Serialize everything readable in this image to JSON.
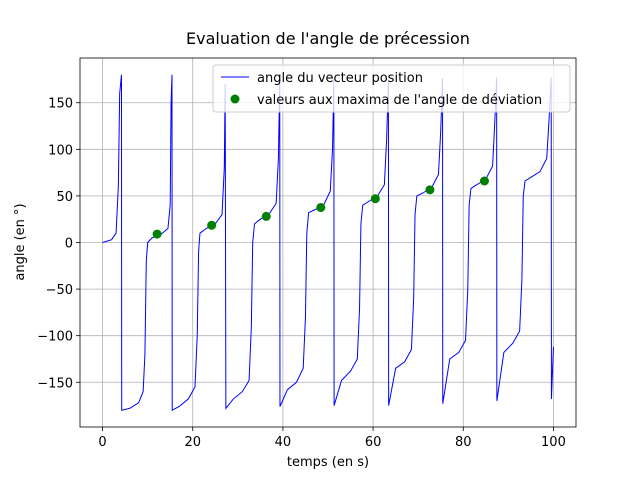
{
  "chart_data": {
    "type": "line",
    "title": "Evaluation de l'angle de précession",
    "xlabel": "temps (en s)",
    "ylabel": "angle (en °)",
    "xlim": [
      -5,
      105
    ],
    "ylim": [
      -198,
      198
    ],
    "xticks": [
      0,
      20,
      40,
      60,
      80,
      100
    ],
    "yticks": [
      {
        "value": -150,
        "label": "−150"
      },
      {
        "value": -100,
        "label": "−100"
      },
      {
        "value": -50,
        "label": "−50"
      },
      0,
      50,
      100,
      150
    ],
    "grid": true,
    "legend": "upper right",
    "series": [
      {
        "name": "angle du vecteur position",
        "type": "line",
        "color": "#0000ff",
        "x": [
          0,
          2,
          3,
          3.5,
          3.8,
          4.2,
          4.25,
          6,
          8,
          9,
          9.4,
          9.7,
          10,
          11,
          13,
          14.5,
          15,
          15.2,
          15.4,
          15.45,
          17,
          19,
          20.5,
          21,
          21.3,
          21.6,
          23,
          25,
          26.5,
          27,
          27.2,
          27.35,
          29,
          31,
          32.5,
          33,
          33.3,
          33.7,
          35,
          37,
          38.5,
          39,
          39.3,
          39.35,
          41,
          43,
          44.5,
          45,
          45.3,
          45.7,
          47,
          49,
          50.5,
          51,
          51.3,
          51.35,
          53,
          55,
          56.5,
          57,
          57.3,
          57.7,
          59,
          61,
          62.5,
          63,
          63.4,
          63.45,
          65,
          67,
          68.5,
          69,
          69.3,
          69.7,
          71,
          73,
          74.5,
          75,
          75.4,
          75.45,
          77,
          79,
          80.5,
          81,
          81.3,
          81.7,
          83,
          85,
          86.5,
          87,
          87.4,
          87.45,
          89,
          91,
          92.5,
          93,
          93.3,
          93.7,
          95,
          97,
          98.5,
          99,
          99.5,
          99.55,
          100
        ],
        "values": [
          0,
          3,
          10,
          60,
          160,
          180,
          -180,
          -178,
          -172,
          -160,
          -120,
          -20,
          0,
          5,
          9,
          15,
          40,
          150,
          180,
          -180,
          -176,
          -168,
          -155,
          -100,
          -10,
          10,
          15,
          20,
          30,
          80,
          170,
          -178,
          -168,
          -160,
          -148,
          -90,
          0,
          20,
          25,
          31,
          42,
          90,
          175,
          -176,
          -158,
          -150,
          -135,
          -80,
          10,
          32,
          35,
          40,
          55,
          100,
          175,
          -175,
          -148,
          -138,
          -125,
          -70,
          20,
          40,
          44,
          50,
          62,
          110,
          175,
          -175,
          -135,
          -128,
          -115,
          -60,
          30,
          50,
          53,
          59,
          73,
          120,
          176,
          -173,
          -125,
          -118,
          -105,
          -50,
          40,
          58,
          62,
          68,
          82,
          130,
          177,
          -170,
          -118,
          -108,
          -95,
          -40,
          50,
          66,
          70,
          76,
          90,
          130,
          177,
          -168,
          -112
        ]
      },
      {
        "name": "valeurs aux maxima de l'angle de déviation",
        "type": "scatter",
        "color": "#008000",
        "x": [
          12.1,
          24.2,
          36.3,
          48.4,
          60.5,
          72.6,
          84.7
        ],
        "values": [
          9,
          18.5,
          28,
          37.5,
          47,
          56.5,
          66
        ]
      }
    ]
  }
}
